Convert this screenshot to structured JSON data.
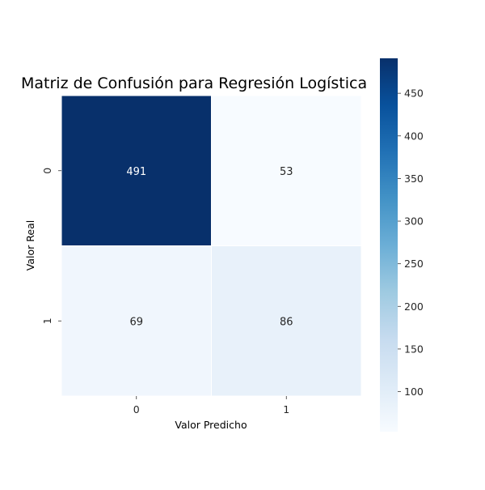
{
  "chart_data": {
    "type": "heatmap",
    "title": "Matriz de Confusión para Regresión Logística",
    "xlabel": "Valor Predicho",
    "ylabel": "Valor Real",
    "x_categories": [
      "0",
      "1"
    ],
    "y_categories": [
      "0",
      "1"
    ],
    "values": [
      [
        491,
        53
      ],
      [
        69,
        86
      ]
    ],
    "colormap": "Blues",
    "colorbar": {
      "range": [
        53,
        491
      ],
      "ticks": [
        100,
        150,
        200,
        250,
        300,
        350,
        400,
        450
      ]
    },
    "annotation_colors": {
      "dark": "#ffffff",
      "light": "#262626"
    }
  }
}
